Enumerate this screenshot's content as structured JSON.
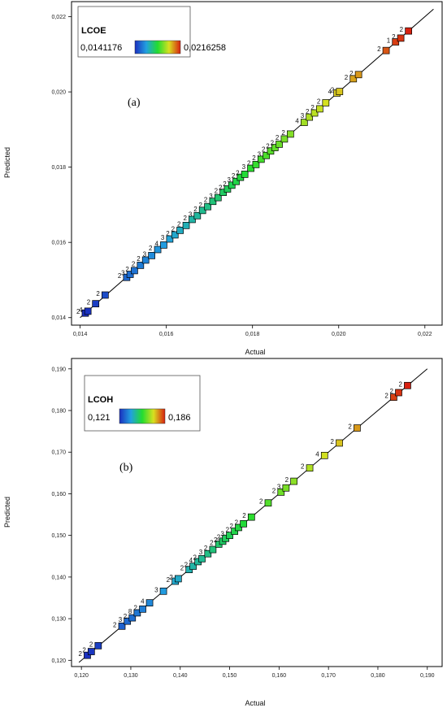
{
  "chart_data": [
    {
      "type": "scatter",
      "panel_label": "(a)",
      "xlabel": "Actual",
      "ylabel": "Predicted",
      "xlim": [
        0.0138,
        0.0224
      ],
      "ylim": [
        0.0138,
        0.0224
      ],
      "xticks": [
        "0,014",
        "0,016",
        "0,018",
        "0,020",
        "0,022"
      ],
      "yticks": [
        "0,014",
        "0,016",
        "0,018",
        "0,020",
        "0,022"
      ],
      "xtick_values": [
        0.014,
        0.016,
        0.018,
        0.02,
        0.022
      ],
      "ytick_values": [
        0.014,
        0.016,
        0.018,
        0.02,
        0.022
      ],
      "reference_line": [
        0.014,
        0.0222
      ],
      "legend": {
        "title": "LCOE",
        "min_label": "0,0141176",
        "max_label": "0,0216258",
        "min": 0.0141176,
        "max": 0.0216258
      },
      "points": [
        {
          "x": 0.01412,
          "y": 0.01412,
          "label": "2"
        },
        {
          "x": 0.01418,
          "y": 0.01417,
          "label": "4"
        },
        {
          "x": 0.01436,
          "y": 0.01437,
          "label": "2"
        },
        {
          "x": 0.01458,
          "y": 0.0146,
          "label": "2"
        },
        {
          "x": 0.01508,
          "y": 0.01507,
          "label": "2"
        },
        {
          "x": 0.01516,
          "y": 0.01515,
          "label": "3"
        },
        {
          "x": 0.01526,
          "y": 0.01525,
          "label": "2"
        },
        {
          "x": 0.0154,
          "y": 0.01539,
          "label": "2"
        },
        {
          "x": 0.01552,
          "y": 0.01553,
          "label": "2"
        },
        {
          "x": 0.01566,
          "y": 0.01565,
          "label": "3"
        },
        {
          "x": 0.0158,
          "y": 0.01581,
          "label": "2"
        },
        {
          "x": 0.01594,
          "y": 0.01593,
          "label": "4"
        },
        {
          "x": 0.01608,
          "y": 0.01609,
          "label": "3"
        },
        {
          "x": 0.0162,
          "y": 0.0162,
          "label": "2"
        },
        {
          "x": 0.01632,
          "y": 0.01632,
          "label": "2"
        },
        {
          "x": 0.01646,
          "y": 0.01645,
          "label": "2"
        },
        {
          "x": 0.0166,
          "y": 0.01661,
          "label": "2"
        },
        {
          "x": 0.01672,
          "y": 0.01671,
          "label": "3"
        },
        {
          "x": 0.01684,
          "y": 0.01685,
          "label": "2"
        },
        {
          "x": 0.01696,
          "y": 0.01695,
          "label": "2"
        },
        {
          "x": 0.01708,
          "y": 0.01709,
          "label": "2"
        },
        {
          "x": 0.0172,
          "y": 0.01719,
          "label": "3"
        },
        {
          "x": 0.01732,
          "y": 0.01733,
          "label": "2"
        },
        {
          "x": 0.01742,
          "y": 0.01742,
          "label": "2"
        },
        {
          "x": 0.01752,
          "y": 0.01752,
          "label": "2"
        },
        {
          "x": 0.01762,
          "y": 0.01762,
          "label": "3"
        },
        {
          "x": 0.01772,
          "y": 0.01773,
          "label": "2"
        },
        {
          "x": 0.01782,
          "y": 0.01781,
          "label": "2"
        },
        {
          "x": 0.01796,
          "y": 0.01797,
          "label": "3"
        },
        {
          "x": 0.01808,
          "y": 0.01807,
          "label": "2"
        },
        {
          "x": 0.0182,
          "y": 0.01821,
          "label": "2"
        },
        {
          "x": 0.01832,
          "y": 0.01831,
          "label": "3"
        },
        {
          "x": 0.01842,
          "y": 0.01843,
          "label": "2"
        },
        {
          "x": 0.01852,
          "y": 0.01852,
          "label": "2"
        },
        {
          "x": 0.01862,
          "y": 0.01861,
          "label": "2"
        },
        {
          "x": 0.01874,
          "y": 0.01875,
          "label": "2"
        },
        {
          "x": 0.01888,
          "y": 0.01888,
          "label": "2"
        },
        {
          "x": 0.0192,
          "y": 0.01919,
          "label": "4"
        },
        {
          "x": 0.01932,
          "y": 0.01933,
          "label": "3"
        },
        {
          "x": 0.01944,
          "y": 0.01944,
          "label": "2"
        },
        {
          "x": 0.01956,
          "y": 0.01955,
          "label": "2"
        },
        {
          "x": 0.0197,
          "y": 0.01971,
          "label": "2"
        },
        {
          "x": 0.01996,
          "y": 0.01997,
          "label": "4"
        },
        {
          "x": 0.02002,
          "y": 0.02001,
          "label": "2"
        },
        {
          "x": 0.02034,
          "y": 0.02035,
          "label": "2"
        },
        {
          "x": 0.02046,
          "y": 0.02046,
          "label": "2"
        },
        {
          "x": 0.0211,
          "y": 0.0211,
          "label": "2"
        },
        {
          "x": 0.02132,
          "y": 0.02133,
          "label": "1"
        },
        {
          "x": 0.02144,
          "y": 0.02143,
          "label": "2"
        },
        {
          "x": 0.02162,
          "y": 0.02162,
          "label": "2"
        }
      ]
    },
    {
      "type": "scatter",
      "panel_label": "(b)",
      "xlabel": "Actual",
      "ylabel": "Predicted",
      "xlim": [
        0.118,
        0.193
      ],
      "ylim": [
        0.1185,
        0.1925
      ],
      "xticks": [
        "0,120",
        "0,130",
        "0,140",
        "0,150",
        "0,160",
        "0,170",
        "0,180",
        "0,190"
      ],
      "yticks": [
        "0,120",
        "0,130",
        "0,140",
        "0,150",
        "0,160",
        "0,170",
        "0,180",
        "0,190"
      ],
      "xtick_values": [
        0.12,
        0.13,
        0.14,
        0.15,
        0.16,
        0.17,
        0.18,
        0.19
      ],
      "ytick_values": [
        0.12,
        0.13,
        0.14,
        0.15,
        0.16,
        0.17,
        0.18,
        0.19
      ],
      "reference_line": [
        0.1195,
        0.19
      ],
      "legend": {
        "title": "LCOH",
        "min_label": "0,121",
        "max_label": "0,186",
        "min": 0.121,
        "max": 0.186
      },
      "points": [
        {
          "x": 0.1212,
          "y": 0.1212,
          "label": "2"
        },
        {
          "x": 0.122,
          "y": 0.1221,
          "label": "2"
        },
        {
          "x": 0.1234,
          "y": 0.1235,
          "label": "2"
        },
        {
          "x": 0.1282,
          "y": 0.1282,
          "label": "2"
        },
        {
          "x": 0.1293,
          "y": 0.1294,
          "label": "3"
        },
        {
          "x": 0.1303,
          "y": 0.1302,
          "label": "2"
        },
        {
          "x": 0.1313,
          "y": 0.1314,
          "label": "8"
        },
        {
          "x": 0.1324,
          "y": 0.1323,
          "label": "2"
        },
        {
          "x": 0.1338,
          "y": 0.1338,
          "label": "4"
        },
        {
          "x": 0.1366,
          "y": 0.1366,
          "label": "3"
        },
        {
          "x": 0.139,
          "y": 0.139,
          "label": "2"
        },
        {
          "x": 0.1396,
          "y": 0.1396,
          "label": "2"
        },
        {
          "x": 0.1418,
          "y": 0.1418,
          "label": "2"
        },
        {
          "x": 0.1426,
          "y": 0.1426,
          "label": "2"
        },
        {
          "x": 0.1436,
          "y": 0.1437,
          "label": "4"
        },
        {
          "x": 0.1444,
          "y": 0.1444,
          "label": "2"
        },
        {
          "x": 0.1456,
          "y": 0.1456,
          "label": "3"
        },
        {
          "x": 0.1466,
          "y": 0.1466,
          "label": "2"
        },
        {
          "x": 0.1478,
          "y": 0.1479,
          "label": "2"
        },
        {
          "x": 0.1486,
          "y": 0.1486,
          "label": "2"
        },
        {
          "x": 0.1492,
          "y": 0.1493,
          "label": "2"
        },
        {
          "x": 0.15,
          "y": 0.15,
          "label": "3"
        },
        {
          "x": 0.151,
          "y": 0.151,
          "label": "2"
        },
        {
          "x": 0.1518,
          "y": 0.1519,
          "label": "2"
        },
        {
          "x": 0.1528,
          "y": 0.1528,
          "label": "2"
        },
        {
          "x": 0.1544,
          "y": 0.1544,
          "label": "2"
        },
        {
          "x": 0.1578,
          "y": 0.1578,
          "label": "2"
        },
        {
          "x": 0.1604,
          "y": 0.1604,
          "label": "2"
        },
        {
          "x": 0.1614,
          "y": 0.1614,
          "label": "3"
        },
        {
          "x": 0.163,
          "y": 0.163,
          "label": "2"
        },
        {
          "x": 0.1662,
          "y": 0.1662,
          "label": "2"
        },
        {
          "x": 0.1692,
          "y": 0.1692,
          "label": "4"
        },
        {
          "x": 0.1722,
          "y": 0.1722,
          "label": "2"
        },
        {
          "x": 0.1758,
          "y": 0.1758,
          "label": "2"
        },
        {
          "x": 0.1832,
          "y": 0.1832,
          "label": "2"
        },
        {
          "x": 0.1842,
          "y": 0.1843,
          "label": "2"
        },
        {
          "x": 0.186,
          "y": 0.186,
          "label": "2"
        }
      ]
    }
  ]
}
